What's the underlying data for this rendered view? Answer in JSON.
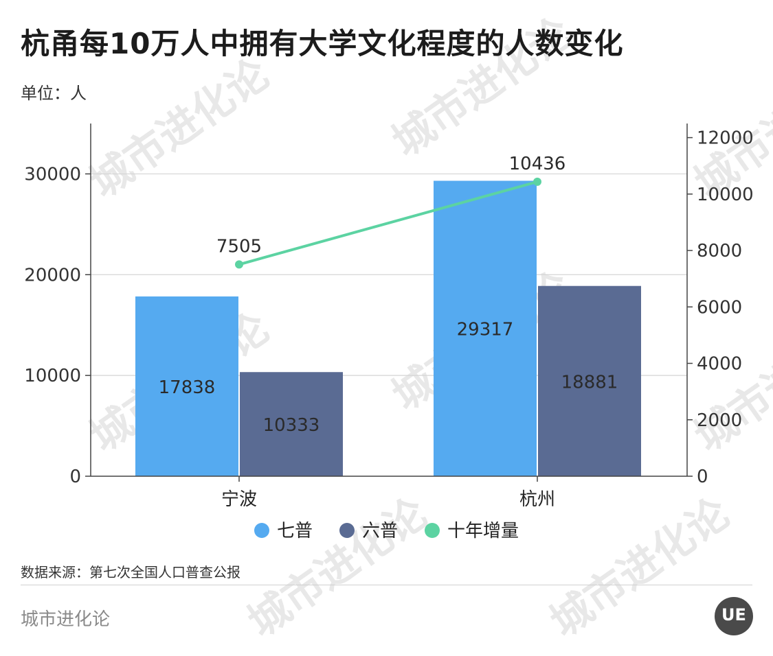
{
  "title": "杭甬每10万人中拥有大学文化程度的人数变化",
  "unit": "单位：人",
  "source": "数据来源：第七次全国人口普查公报",
  "brand": "城市进化论",
  "logo_text": "UE",
  "watermark_text": "城市进化论",
  "colors": {
    "qipu": "#55aaf0",
    "liupu": "#5a6b93",
    "increase": "#5cd3a2"
  },
  "chart_data": {
    "type": "bar",
    "categories": [
      "宁波",
      "杭州"
    ],
    "series": [
      {
        "name": "七普",
        "values": [
          17838,
          29317
        ],
        "axis": "left",
        "type": "bar"
      },
      {
        "name": "六普",
        "values": [
          10333,
          18881
        ],
        "axis": "left",
        "type": "bar"
      },
      {
        "name": "十年增量",
        "values": [
          7505,
          10436
        ],
        "axis": "right",
        "type": "line"
      }
    ],
    "y_left": {
      "min": 0,
      "max": 35000,
      "ticks": [
        0,
        10000,
        20000,
        30000
      ]
    },
    "y_right": {
      "min": 0,
      "max": 12500,
      "ticks": [
        0,
        2000,
        4000,
        6000,
        8000,
        10000,
        12000
      ]
    },
    "grid": true,
    "legend_position": "bottom"
  }
}
